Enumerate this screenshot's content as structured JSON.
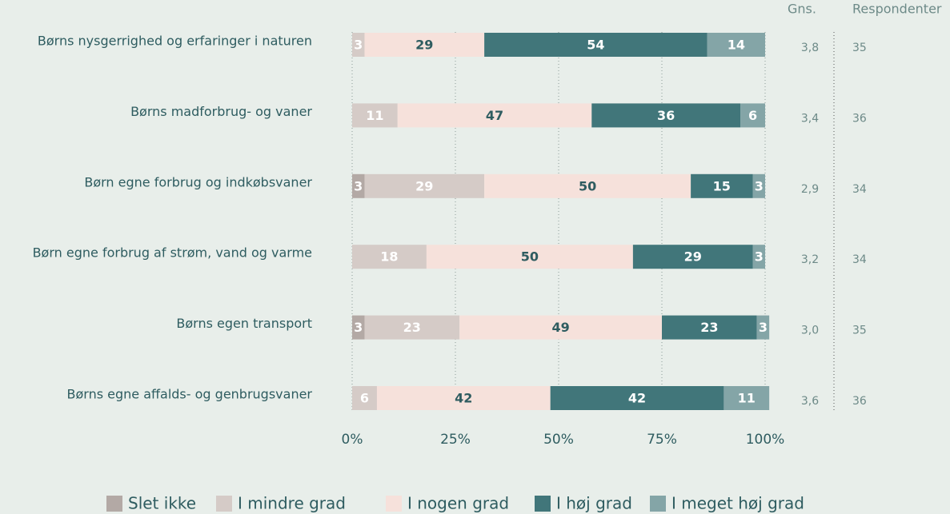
{
  "chart_data": {
    "type": "stacked_bar_horizontal",
    "categories": [
      "Børns nysgerrighed og erfaringer i naturen",
      "Børns madforbrug- og vaner",
      "Børn egne forbrug og indkøbsvaner",
      "Børn egne forbrug af strøm, vand og varme",
      "Børns egen transport",
      "Børns egne affalds- og genbrugsvaner"
    ],
    "series": [
      {
        "name": "Slet ikke",
        "color": "#b3a9a5",
        "label_color": "#ffffff",
        "values": [
          null,
          null,
          3,
          null,
          3,
          null
        ]
      },
      {
        "name": "I mindre grad",
        "color": "#d5cbc7",
        "label_color": "#ffffff",
        "values": [
          3,
          11,
          29,
          18,
          23,
          6
        ]
      },
      {
        "name": "I nogen grad",
        "color": "#f6e1db",
        "label_color": "#2e5c60",
        "values": [
          29,
          47,
          50,
          50,
          49,
          42
        ]
      },
      {
        "name": "I høj grad",
        "color": "#41767a",
        "label_color": "#ffffff",
        "values": [
          54,
          36,
          15,
          29,
          23,
          42
        ]
      },
      {
        "name": "I meget høj grad",
        "color": "#84a5a7",
        "label_color": "#ffffff",
        "values": [
          14,
          6,
          3,
          3,
          3,
          11
        ]
      }
    ],
    "xlim": [
      0,
      100
    ],
    "xticks": [
      {
        "value": 0,
        "label": "0%"
      },
      {
        "value": 25,
        "label": "25%"
      },
      {
        "value": 50,
        "label": "50%"
      },
      {
        "value": 75,
        "label": "75%"
      },
      {
        "value": 100,
        "label": "100%"
      }
    ],
    "grid": true,
    "side_columns": [
      {
        "header": "Gns.",
        "values": [
          "3,8",
          "3,4",
          "2,9",
          "3,2",
          "3,0",
          "3,6"
        ]
      },
      {
        "header": "Respondenter",
        "values": [
          35,
          36,
          34,
          34,
          35,
          36
        ]
      }
    ],
    "legend": "bottom"
  }
}
